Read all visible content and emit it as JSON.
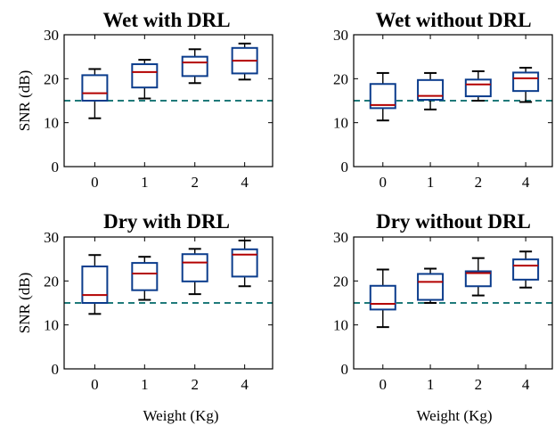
{
  "chart_data": [
    {
      "type": "box",
      "title": "Wet with DRL",
      "xlabel": "",
      "ylabel": "SNR (dB)",
      "categories": [
        "0",
        "1",
        "2",
        "4"
      ],
      "ylim": [
        0,
        30
      ],
      "yticks": [
        "0",
        "10",
        "20",
        "30"
      ],
      "reference_line": 15,
      "boxes": [
        {
          "whisker_low": 11.0,
          "q1": 15.0,
          "median": 16.7,
          "q3": 20.8,
          "whisker_high": 22.2
        },
        {
          "whisker_low": 15.5,
          "q1": 18.0,
          "median": 21.5,
          "q3": 23.3,
          "whisker_high": 24.3
        },
        {
          "whisker_low": 19.0,
          "q1": 20.6,
          "median": 23.7,
          "q3": 25.0,
          "whisker_high": 26.7
        },
        {
          "whisker_low": 19.8,
          "q1": 21.2,
          "median": 24.1,
          "q3": 27.0,
          "whisker_high": 28.0
        }
      ]
    },
    {
      "type": "box",
      "title": "Wet without DRL",
      "xlabel": "",
      "ylabel": "",
      "categories": [
        "0",
        "1",
        "2",
        "4"
      ],
      "ylim": [
        0,
        30
      ],
      "yticks": [
        "0",
        "10",
        "20",
        "30"
      ],
      "reference_line": 15,
      "boxes": [
        {
          "whisker_low": 10.5,
          "q1": 13.3,
          "median": 14.0,
          "q3": 18.8,
          "whisker_high": 21.3
        },
        {
          "whisker_low": 13.0,
          "q1": 15.2,
          "median": 16.1,
          "q3": 19.7,
          "whisker_high": 21.3
        },
        {
          "whisker_low": 15.0,
          "q1": 16.0,
          "median": 18.7,
          "q3": 19.8,
          "whisker_high": 21.7
        },
        {
          "whisker_low": 14.7,
          "q1": 17.2,
          "median": 20.1,
          "q3": 21.4,
          "whisker_high": 22.5
        }
      ]
    },
    {
      "type": "box",
      "title": "Dry with DRL",
      "xlabel": "Weight (Kg)",
      "ylabel": "SNR (dB)",
      "categories": [
        "0",
        "1",
        "2",
        "4"
      ],
      "ylim": [
        0,
        30
      ],
      "yticks": [
        "0",
        "10",
        "20",
        "30"
      ],
      "reference_line": 15,
      "boxes": [
        {
          "whisker_low": 12.5,
          "q1": 15.0,
          "median": 16.8,
          "q3": 23.3,
          "whisker_high": 25.9
        },
        {
          "whisker_low": 15.7,
          "q1": 17.9,
          "median": 21.7,
          "q3": 24.1,
          "whisker_high": 25.5
        },
        {
          "whisker_low": 17.0,
          "q1": 19.9,
          "median": 24.2,
          "q3": 26.1,
          "whisker_high": 27.3
        },
        {
          "whisker_low": 18.8,
          "q1": 21.0,
          "median": 26.0,
          "q3": 27.2,
          "whisker_high": 29.2
        }
      ]
    },
    {
      "type": "box",
      "title": "Dry without DRL",
      "xlabel": "Weight (Kg)",
      "ylabel": "",
      "categories": [
        "0",
        "1",
        "2",
        "4"
      ],
      "ylim": [
        0,
        30
      ],
      "yticks": [
        "0",
        "10",
        "20",
        "30"
      ],
      "reference_line": 15,
      "boxes": [
        {
          "whisker_low": 9.5,
          "q1": 13.5,
          "median": 14.8,
          "q3": 18.9,
          "whisker_high": 22.6
        },
        {
          "whisker_low": 15.0,
          "q1": 15.7,
          "median": 19.8,
          "q3": 21.6,
          "whisker_high": 22.8
        },
        {
          "whisker_low": 16.7,
          "q1": 18.8,
          "median": 21.8,
          "q3": 22.2,
          "whisker_high": 25.2
        },
        {
          "whisker_low": 18.5,
          "q1": 20.3,
          "median": 23.5,
          "q3": 24.9,
          "whisker_high": 26.7
        }
      ]
    }
  ],
  "colors": {
    "box": "#0b3c8c",
    "median": "#b30000",
    "whisker": "#000000",
    "reference": "#1f7a7a",
    "axis": "#000000"
  }
}
